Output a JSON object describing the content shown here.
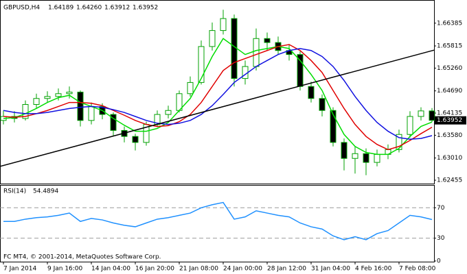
{
  "chart_data": [
    {
      "type": "candlestick",
      "title": "GBPUSD,H4",
      "quote": [
        "1.64189",
        "1.64260",
        "1.63912",
        "1.63952"
      ],
      "xlim": [
        -0.3125,
        39.1875
      ],
      "ylim": [
        1.6237,
        1.6693
      ],
      "yticks": [
        1.66385,
        1.65815,
        {
          "value": 1.6526,
          "label": "1.65260"
        },
        {
          "value": 1.6469,
          "label": "1.64690"
        },
        1.64135,
        {
          "value": 1.6358,
          "label": "1.63580"
        },
        {
          "value": 1.6301,
          "label": "1.63010"
        },
        1.62455
      ],
      "colors": {
        "up": "#ffffff",
        "down": "#000000",
        "wick": "#00a000"
      },
      "open": [
        1.6395,
        1.6405,
        1.64,
        1.6435,
        1.645,
        1.6455,
        1.6462,
        1.6466,
        1.6395,
        1.643,
        1.641,
        1.637,
        1.6355,
        1.634,
        1.6385,
        1.641,
        1.642,
        1.6462,
        1.649,
        1.658,
        1.662,
        1.665,
        1.65,
        1.653,
        1.66,
        1.659,
        1.657,
        1.656,
        1.648,
        1.645,
        1.642,
        1.634,
        1.63,
        1.6312,
        1.629,
        1.631,
        1.6322,
        1.636,
        1.6405,
        1.64189
      ],
      "high": [
        1.642,
        1.6418,
        1.6445,
        1.6462,
        1.6468,
        1.6475,
        1.648,
        1.647,
        1.644,
        1.6438,
        1.6415,
        1.638,
        1.6362,
        1.6392,
        1.642,
        1.6432,
        1.647,
        1.6505,
        1.6595,
        1.664,
        1.6672,
        1.666,
        1.6545,
        1.6625,
        1.6615,
        1.6605,
        1.6585,
        1.6568,
        1.6492,
        1.646,
        1.6428,
        1.635,
        1.633,
        1.6325,
        1.6322,
        1.6335,
        1.6372,
        1.6418,
        1.6428,
        1.6426
      ],
      "low": [
        1.6385,
        1.639,
        1.6395,
        1.6425,
        1.644,
        1.6445,
        1.645,
        1.638,
        1.6385,
        1.6398,
        1.6355,
        1.634,
        1.632,
        1.6332,
        1.6378,
        1.64,
        1.6415,
        1.6455,
        1.6485,
        1.657,
        1.661,
        1.648,
        1.6485,
        1.652,
        1.657,
        1.656,
        1.6545,
        1.647,
        1.644,
        1.6405,
        1.633,
        1.627,
        1.6262,
        1.6258,
        1.628,
        1.6298,
        1.6315,
        1.6352,
        1.6395,
        1.63912
      ],
      "close": [
        1.6405,
        1.64,
        1.6435,
        1.645,
        1.6455,
        1.6462,
        1.6466,
        1.6395,
        1.643,
        1.641,
        1.637,
        1.6355,
        1.634,
        1.6385,
        1.641,
        1.642,
        1.6462,
        1.649,
        1.658,
        1.662,
        1.665,
        1.65,
        1.653,
        1.66,
        1.659,
        1.657,
        1.656,
        1.648,
        1.645,
        1.642,
        1.634,
        1.63,
        1.6312,
        1.629,
        1.631,
        1.6322,
        1.636,
        1.6405,
        1.64189,
        1.63952
      ],
      "series": [
        {
          "color": "#00dd00",
          "values": [
            1.64,
            1.6402,
            1.6412,
            1.6425,
            1.644,
            1.6452,
            1.6458,
            1.644,
            1.643,
            1.642,
            1.64,
            1.6383,
            1.6368,
            1.6368,
            1.6375,
            1.639,
            1.642,
            1.645,
            1.65,
            1.6555,
            1.66,
            1.658,
            1.656,
            1.657,
            1.6575,
            1.658,
            1.6575,
            1.6545,
            1.651,
            1.647,
            1.641,
            1.636,
            1.633,
            1.6315,
            1.631,
            1.631,
            1.6325,
            1.6355,
            1.638,
            1.6391
          ]
        },
        {
          "color": "#e00000",
          "values": [
            1.6405,
            1.6403,
            1.6405,
            1.6412,
            1.642,
            1.643,
            1.644,
            1.644,
            1.6438,
            1.6432,
            1.642,
            1.6408,
            1.6395,
            1.6385,
            1.638,
            1.6382,
            1.6392,
            1.641,
            1.644,
            1.648,
            1.652,
            1.654,
            1.655,
            1.656,
            1.657,
            1.658,
            1.6585,
            1.657,
            1.6545,
            1.6515,
            1.647,
            1.6425,
            1.6385,
            1.6355,
            1.6335,
            1.6322,
            1.633,
            1.6345,
            1.6362,
            1.6378
          ]
        },
        {
          "color": "#1010e0",
          "values": [
            1.642,
            1.6415,
            1.6412,
            1.6412,
            1.6415,
            1.642,
            1.6425,
            1.6428,
            1.643,
            1.6428,
            1.6422,
            1.6415,
            1.6405,
            1.6395,
            1.6388,
            1.6385,
            1.6388,
            1.6395,
            1.641,
            1.6432,
            1.646,
            1.649,
            1.651,
            1.653,
            1.6545,
            1.656,
            1.657,
            1.6575,
            1.657,
            1.6555,
            1.653,
            1.6495,
            1.6455,
            1.642,
            1.639,
            1.6368,
            1.6352,
            1.6348,
            1.635,
            1.6357
          ]
        }
      ],
      "trendline": {
        "color": "#000000",
        "x": [
          -0.3125,
          39.1875
        ],
        "values": [
          1.628,
          1.6571
        ]
      }
    },
    {
      "type": "line",
      "title": "RSI(14)",
      "xlim": [
        -0.3125,
        39.1875
      ],
      "ylim": [
        0,
        100
      ],
      "yticks": [
        70,
        30,
        0
      ],
      "levels": [
        70,
        30
      ],
      "series": [
        {
          "color": "#1e90ff",
          "values": [
            52,
            52,
            55,
            57,
            58,
            60,
            63,
            52,
            56,
            54,
            50,
            47,
            45,
            50,
            55,
            57,
            60,
            63,
            70,
            74,
            77,
            55,
            58,
            66,
            63,
            60,
            58,
            50,
            45,
            42,
            33,
            28,
            32,
            28,
            36,
            40,
            50,
            60,
            58,
            54.4894
          ]
        }
      ],
      "xticks": [
        {
          "value": 0,
          "label": "7 Jan 2014"
        },
        {
          "value": 4,
          "label": "9 Jan 16:00"
        },
        {
          "value": 8,
          "label": "14 Jan 04:00"
        },
        {
          "value": 12,
          "label": "16 Jan 20:00"
        },
        {
          "value": 16,
          "label": "21 Jan 08:00"
        },
        {
          "value": 20,
          "label": "24 Jan 00:00"
        },
        {
          "value": 24,
          "label": "28 Jan 12:00"
        },
        {
          "value": 28,
          "label": "31 Jan 04:00"
        },
        {
          "value": 32,
          "label": "4 Feb 16:00"
        },
        {
          "value": 36,
          "label": "7 Feb 08:00"
        }
      ],
      "credit": "FC MT4, © 2001-2014, MetaQuotes Software Corp."
    }
  ]
}
